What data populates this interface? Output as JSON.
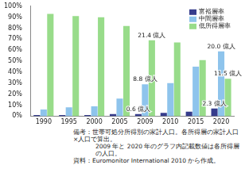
{
  "chart_data": {
    "type": "bar",
    "categories": [
      "1990",
      "1995",
      "2000",
      "2005",
      "2009",
      "2010",
      "2015",
      "2020"
    ],
    "series": [
      {
        "name": "富裕層率",
        "color": "#363c8c",
        "values": [
          1,
          1,
          1,
          2,
          2,
          3,
          4,
          7
        ]
      },
      {
        "name": "中間層率",
        "color": "#8ec4ec",
        "values": [
          6,
          8,
          9,
          16,
          29,
          30,
          45,
          59
        ]
      },
      {
        "name": "低所得層率",
        "color": "#98dc8a",
        "values": [
          93,
          91,
          90,
          82,
          69,
          67,
          51,
          34
        ]
      }
    ],
    "ylim": [
      0,
      100
    ],
    "yticks": [
      {
        "value": 0,
        "label": "0%"
      },
      {
        "value": 10,
        "label": "10%"
      },
      {
        "value": 20,
        "label": "20%"
      },
      {
        "value": 30,
        "label": "30%"
      },
      {
        "value": 40,
        "label": "40%"
      },
      {
        "value": 50,
        "label": "50%"
      },
      {
        "value": 60,
        "label": "60%"
      },
      {
        "value": 70,
        "label": "70%"
      },
      {
        "value": 80,
        "label": "80%"
      },
      {
        "value": 90,
        "label": "90%"
      },
      {
        "value": 100,
        "label": "100%"
      }
    ],
    "grid": false,
    "legend": "upper right",
    "annotations": [
      {
        "category": "2009",
        "series": "低所得層率",
        "text": "21.4 億人"
      },
      {
        "category": "2009",
        "series": "中間層率",
        "text": "8.8 億人"
      },
      {
        "category": "2009",
        "series": "富裕層率",
        "text": "0.6 億人"
      },
      {
        "category": "2020",
        "series": "中間層率",
        "text": "20.0 億人"
      },
      {
        "category": "2020",
        "series": "低所得層率",
        "text": "11.5 億人"
      },
      {
        "category": "2020",
        "series": "富裕層率",
        "text": "2.3 億人"
      }
    ],
    "notes": [
      "備考：世帯可処分所得別の家計人口。各所得層の家計人口×人口で算出。",
      "2009 年と 2020 年のグラフ内記載数値は各所得層の人口。",
      "資料：Euromonitor International 2010 から作成。"
    ]
  }
}
